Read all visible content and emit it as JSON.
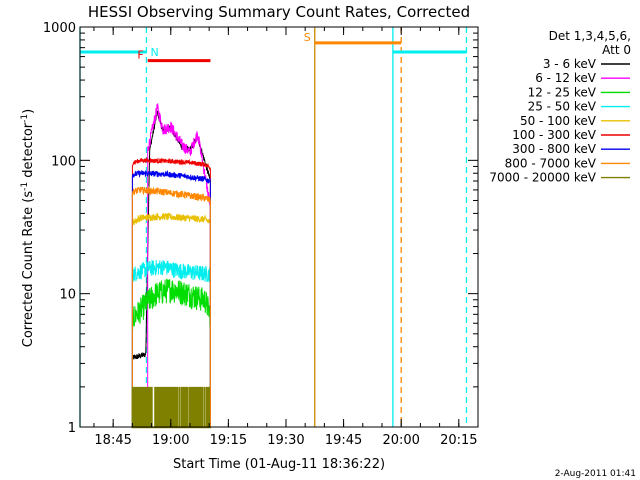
{
  "chart_data": {
    "type": "line",
    "title": "HESSI Observing Summary Count Rates, Corrected",
    "xlabel": "Start Time (01-Aug-11 18:36:22)",
    "ylabel": "Corrected Count Rate (s⁻¹ detector⁻¹)",
    "ylabel_main": "Corrected Count Rate (s",
    "ylabel_sup1": "-1",
    "ylabel_mid": " detector",
    "ylabel_sup2": "-1",
    "ylabel_end": ")",
    "yscale": "log",
    "ylim": [
      1,
      1000
    ],
    "xlim": [
      "18:36:22",
      "20:20:00"
    ],
    "x_ticks": [
      "18:45",
      "19:00",
      "19:15",
      "19:30",
      "19:45",
      "20:00",
      "20:15"
    ],
    "y_ticks": [
      "1",
      "10",
      "100",
      "1000"
    ],
    "footer": "2-Aug-2011 01:41",
    "legend_placement": "right",
    "legend_header": [
      "Det 1,3,4,5,6,",
      "Att 0"
    ],
    "series": [
      {
        "name": "3 - 6 keV",
        "color": "#000000",
        "start": "18:50:00",
        "end": "19:10:20",
        "points": [
          [
            "18:50:00",
            3.3
          ],
          [
            "18:53:30",
            3.5
          ],
          [
            "18:54:30",
            120
          ],
          [
            "18:56:30",
            230
          ],
          [
            "18:58:00",
            165
          ],
          [
            "19:00:00",
            175
          ],
          [
            "19:03:00",
            125
          ],
          [
            "19:05:00",
            120
          ],
          [
            "19:07:00",
            150
          ],
          [
            "19:10:20",
            70
          ]
        ]
      },
      {
        "name": "6 - 12 keV",
        "color": "#ff00ff",
        "start": "18:54:00",
        "end": "19:10:20",
        "points": [
          [
            "18:54:00",
            120
          ],
          [
            "18:56:30",
            250
          ],
          [
            "18:58:00",
            170
          ],
          [
            "19:00:00",
            180
          ],
          [
            "19:03:00",
            130
          ],
          [
            "19:05:00",
            115
          ],
          [
            "19:07:00",
            160
          ],
          [
            "19:10:20",
            45
          ]
        ]
      },
      {
        "name": "12 - 25 keV",
        "color": "#00dd00",
        "start": "18:50:00",
        "end": "19:10:20",
        "points": [
          [
            "18:50:00",
            6.5
          ],
          [
            "18:53:30",
            8.5
          ],
          [
            "18:56:00",
            10
          ],
          [
            "19:00:00",
            11
          ],
          [
            "19:05:00",
            10
          ],
          [
            "19:09:00",
            9
          ],
          [
            "19:10:20",
            7
          ]
        ]
      },
      {
        "name": "25 - 50 keV",
        "color": "#00eeee",
        "start": "18:50:00",
        "end": "19:10:20",
        "points": [
          [
            "18:50:00",
            14
          ],
          [
            "18:54:00",
            15.5
          ],
          [
            "18:58:00",
            16
          ],
          [
            "19:02:00",
            15
          ],
          [
            "19:06:00",
            14.5
          ],
          [
            "19:10:20",
            14
          ]
        ]
      },
      {
        "name": "50 - 100 keV",
        "color": "#e8c000",
        "start": "18:50:00",
        "end": "19:10:20",
        "points": [
          [
            "18:50:00",
            34
          ],
          [
            "18:52:00",
            37
          ],
          [
            "18:58:00",
            38
          ],
          [
            "19:04:00",
            37
          ],
          [
            "19:09:00",
            36
          ],
          [
            "19:10:20",
            34
          ]
        ]
      },
      {
        "name": "100 - 300 keV",
        "color": "#ee0000",
        "start": "18:50:00",
        "end": "19:10:20",
        "points": [
          [
            "18:50:00",
            95
          ],
          [
            "18:52:00",
            100
          ],
          [
            "18:58:00",
            99
          ],
          [
            "19:04:00",
            97
          ],
          [
            "19:09:00",
            93
          ],
          [
            "19:10:20",
            88
          ]
        ]
      },
      {
        "name": "300 - 800 keV",
        "color": "#0000ee",
        "start": "18:50:00",
        "end": "19:10:20",
        "points": [
          [
            "18:50:00",
            78
          ],
          [
            "18:52:00",
            80
          ],
          [
            "18:58:00",
            79
          ],
          [
            "19:04:00",
            76
          ],
          [
            "19:09:00",
            72
          ],
          [
            "19:10:20",
            70
          ]
        ]
      },
      {
        "name": "800 - 7000 keV",
        "color": "#ff8800",
        "start": "18:50:00",
        "end": "19:10:20",
        "points": [
          [
            "18:50:00",
            58
          ],
          [
            "18:52:00",
            60
          ],
          [
            "18:58:00",
            58
          ],
          [
            "19:04:00",
            55
          ],
          [
            "19:09:00",
            52
          ],
          [
            "19:10:20",
            50
          ]
        ]
      },
      {
        "name": "7000 - 20000 keV",
        "color": "#808000",
        "start": "18:50:00",
        "end": "19:10:20",
        "points": [
          [
            "18:50:00",
            1.5
          ],
          [
            "19:10:20",
            1.5
          ]
        ]
      }
    ],
    "annotations": [
      {
        "label": "N",
        "color": "#00eeee",
        "kind": "night",
        "level": 650,
        "line_start": "18:36:22",
        "line_end": "18:53:40"
      },
      {
        "label": "N",
        "color": "#00eeee",
        "kind": "night",
        "level": 650,
        "line_start": "19:57:50",
        "line_end": "20:17:00"
      },
      {
        "label": "F",
        "color": "#ee0000",
        "kind": "flare",
        "level": 560,
        "line_start": "18:54:00",
        "line_end": "19:10:20"
      },
      {
        "label": "S",
        "color": "#ff8800",
        "kind": "saa",
        "level": 760,
        "line_start": "19:37:30",
        "line_end": "20:00:00"
      }
    ],
    "vertical_lines": [
      {
        "time": "18:36:22",
        "color": "#00eeee",
        "style": "solid"
      },
      {
        "time": "18:53:40",
        "color": "#00eeee",
        "style": "dashed"
      },
      {
        "time": "19:37:30",
        "color": "#cc8800",
        "style": "solid"
      },
      {
        "time": "19:57:50",
        "color": "#00eeee",
        "style": "solid"
      },
      {
        "time": "20:00:00",
        "color": "#ff8800",
        "style": "dashed"
      },
      {
        "time": "20:17:00",
        "color": "#00eeee",
        "style": "dashed"
      }
    ]
  }
}
